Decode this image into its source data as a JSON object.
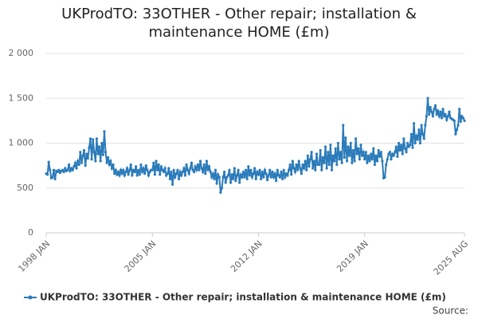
{
  "chart_data": {
    "type": "line",
    "title": "UKProdTO: 33OTHER - Other repair; installation & maintenance HOME (£m)",
    "x": [
      "1998 JAN",
      "1998 FEB",
      "1998 MAR",
      "1998 APR",
      "1998 MAY",
      "1998 JUN",
      "1998 JUL",
      "1998 AUG",
      "1998 SEP",
      "1998 OCT",
      "1998 NOV",
      "1998 DEC",
      "1999 JAN",
      "1999 FEB",
      "1999 MAR",
      "1999 APR",
      "1999 MAY",
      "1999 JUN",
      "1999 JUL",
      "1999 AUG",
      "1999 SEP",
      "1999 OCT",
      "1999 NOV",
      "1999 DEC",
      "2000 JAN",
      "2000 FEB",
      "2000 MAR",
      "2000 APR",
      "2000 MAY",
      "2000 JUN",
      "2000 JUL",
      "2000 AUG",
      "2000 SEP",
      "2000 OCT",
      "2000 NOV",
      "2000 DEC",
      "2001 JAN",
      "2001 FEB",
      "2001 MAR",
      "2001 APR",
      "2001 MAY",
      "2001 JUN",
      "2001 JUL",
      "2001 AUG",
      "2001 SEP",
      "2001 OCT",
      "2001 NOV",
      "2001 DEC",
      "2002 JAN",
      "2002 FEB",
      "2002 MAR",
      "2002 APR",
      "2002 MAY",
      "2002 JUN",
      "2002 JUL",
      "2002 AUG",
      "2002 SEP",
      "2002 OCT",
      "2002 NOV",
      "2002 DEC",
      "2003 JAN",
      "2003 FEB",
      "2003 MAR",
      "2003 APR",
      "2003 MAY",
      "2003 JUN",
      "2003 JUL",
      "2003 AUG",
      "2003 SEP",
      "2003 OCT",
      "2003 NOV",
      "2003 DEC",
      "2004 JAN",
      "2004 FEB",
      "2004 MAR",
      "2004 APR",
      "2004 MAY",
      "2004 JUN",
      "2004 JUL",
      "2004 AUG",
      "2004 SEP",
      "2004 OCT",
      "2004 NOV",
      "2004 DEC",
      "2005 JAN",
      "2005 FEB",
      "2005 MAR",
      "2005 APR",
      "2005 MAY",
      "2005 JUN",
      "2005 JUL",
      "2005 AUG",
      "2005 SEP",
      "2005 OCT",
      "2005 NOV",
      "2005 DEC",
      "2006 JAN",
      "2006 FEB",
      "2006 MAR",
      "2006 APR",
      "2006 MAY",
      "2006 JUN",
      "2006 JUL",
      "2006 AUG",
      "2006 SEP",
      "2006 OCT",
      "2006 NOV",
      "2006 DEC",
      "2007 JAN",
      "2007 FEB",
      "2007 MAR",
      "2007 APR",
      "2007 MAY",
      "2007 JUN",
      "2007 JUL",
      "2007 AUG",
      "2007 SEP",
      "2007 OCT",
      "2007 NOV",
      "2007 DEC",
      "2008 JAN",
      "2008 FEB",
      "2008 MAR",
      "2008 APR",
      "2008 MAY",
      "2008 JUN",
      "2008 JUL",
      "2008 AUG",
      "2008 SEP",
      "2008 OCT",
      "2008 NOV",
      "2008 DEC",
      "2009 JAN",
      "2009 FEB",
      "2009 MAR",
      "2009 APR",
      "2009 MAY",
      "2009 JUN",
      "2009 JUL",
      "2009 AUG",
      "2009 SEP",
      "2009 OCT",
      "2009 NOV",
      "2009 DEC",
      "2010 JAN",
      "2010 FEB",
      "2010 MAR",
      "2010 APR",
      "2010 MAY",
      "2010 JUN",
      "2010 JUL",
      "2010 AUG",
      "2010 SEP",
      "2010 OCT",
      "2010 NOV",
      "2010 DEC",
      "2011 JAN",
      "2011 FEB",
      "2011 MAR",
      "2011 APR",
      "2011 MAY",
      "2011 JUN",
      "2011 JUL",
      "2011 AUG",
      "2011 SEP",
      "2011 OCT",
      "2011 NOV",
      "2011 DEC",
      "2012 JAN",
      "2012 FEB",
      "2012 MAR",
      "2012 APR",
      "2012 MAY",
      "2012 JUN",
      "2012 JUL",
      "2012 AUG",
      "2012 SEP",
      "2012 OCT",
      "2012 NOV",
      "2012 DEC",
      "2013 JAN",
      "2013 FEB",
      "2013 MAR",
      "2013 APR",
      "2013 MAY",
      "2013 JUN",
      "2013 JUL",
      "2013 AUG",
      "2013 SEP",
      "2013 OCT",
      "2013 NOV",
      "2013 DEC",
      "2014 JAN",
      "2014 FEB",
      "2014 MAR",
      "2014 APR",
      "2014 MAY",
      "2014 JUN",
      "2014 JUL",
      "2014 AUG",
      "2014 SEP",
      "2014 OCT",
      "2014 NOV",
      "2014 DEC",
      "2015 JAN",
      "2015 FEB",
      "2015 MAR",
      "2015 APR",
      "2015 MAY",
      "2015 JUN",
      "2015 JUL",
      "2015 AUG",
      "2015 SEP",
      "2015 OCT",
      "2015 NOV",
      "2015 DEC",
      "2016 JAN",
      "2016 FEB",
      "2016 MAR",
      "2016 APR",
      "2016 MAY",
      "2016 JUN",
      "2016 JUL",
      "2016 AUG",
      "2016 SEP",
      "2016 OCT",
      "2016 NOV",
      "2016 DEC",
      "2017 JAN",
      "2017 FEB",
      "2017 MAR",
      "2017 APR",
      "2017 MAY",
      "2017 JUN",
      "2017 JUL",
      "2017 AUG",
      "2017 SEP",
      "2017 OCT",
      "2017 NOV",
      "2017 DEC",
      "2018 JAN",
      "2018 FEB",
      "2018 MAR",
      "2018 APR",
      "2018 MAY",
      "2018 JUN",
      "2018 JUL",
      "2018 AUG",
      "2018 SEP",
      "2018 OCT",
      "2018 NOV",
      "2018 DEC",
      "2019 JAN",
      "2019 FEB",
      "2019 MAR",
      "2019 APR",
      "2019 MAY",
      "2019 JUN",
      "2019 JUL",
      "2019 AUG",
      "2019 SEP",
      "2019 OCT",
      "2019 NOV",
      "2019 DEC",
      "2020 JAN",
      "2020 FEB",
      "2020 MAR",
      "2020 APR",
      "2020 MAY",
      "2020 JUN",
      "2020 JUL",
      "2020 AUG",
      "2020 SEP",
      "2020 OCT",
      "2020 NOV",
      "2020 DEC",
      "2021 JAN",
      "2021 FEB",
      "2021 MAR",
      "2021 APR",
      "2021 MAY",
      "2021 JUN",
      "2021 JUL",
      "2021 AUG",
      "2021 SEP",
      "2021 OCT",
      "2021 NOV",
      "2021 DEC",
      "2022 JAN",
      "2022 FEB",
      "2022 MAR",
      "2022 APR",
      "2022 MAY",
      "2022 JUN",
      "2022 JUL",
      "2022 AUG",
      "2022 SEP",
      "2022 OCT",
      "2022 NOV",
      "2022 DEC",
      "2023 JAN",
      "2023 FEB",
      "2023 MAR",
      "2023 APR",
      "2023 MAY",
      "2023 JUN",
      "2023 JUL",
      "2023 AUG",
      "2023 SEP",
      "2023 OCT",
      "2023 NOV",
      "2023 DEC",
      "2024 JAN",
      "2024 FEB",
      "2024 MAR",
      "2024 APR",
      "2024 MAY",
      "2024 JUN",
      "2024 JUL",
      "2024 AUG",
      "2024 SEP",
      "2024 OCT",
      "2024 NOV",
      "2024 DEC",
      "2025 JAN",
      "2025 FEB",
      "2025 MAR",
      "2025 APR",
      "2025 MAY",
      "2025 JUN",
      "2025 JUL",
      "2025 AUG"
    ],
    "series": [
      {
        "name": "UKProdTO: 33OTHER - Other repair; installation & maintenance HOME (£m)",
        "color": "#2b7bba",
        "values": [
          660,
          650,
          790,
          700,
          610,
          620,
          700,
          600,
          690,
          680,
          700,
          670,
          690,
          700,
          680,
          720,
          690,
          700,
          760,
          690,
          720,
          700,
          740,
          780,
          720,
          800,
          760,
          900,
          780,
          860,
          920,
          750,
          880,
          830,
          950,
          1050,
          820,
          1040,
          900,
          800,
          1050,
          880,
          960,
          800,
          1000,
          870,
          1130,
          900,
          780,
          840,
          760,
          800,
          720,
          760,
          660,
          700,
          650,
          680,
          640,
          700,
          660,
          700,
          640,
          680,
          720,
          650,
          700,
          760,
          640,
          700,
          680,
          740,
          640,
          700,
          650,
          760,
          680,
          720,
          660,
          750,
          700,
          640,
          680,
          700,
          700,
          780,
          650,
          800,
          700,
          760,
          650,
          740,
          700,
          680,
          720,
          640,
          660,
          720,
          600,
          680,
          540,
          700,
          620,
          660,
          700,
          600,
          680,
          640,
          680,
          720,
          640,
          760,
          700,
          660,
          720,
          780,
          700,
          680,
          740,
          700,
          760,
          700,
          800,
          720,
          680,
          760,
          660,
          800,
          700,
          740,
          680,
          620,
          660,
          600,
          700,
          550,
          650,
          620,
          450,
          500,
          620,
          680,
          560,
          620,
          640,
          700,
          560,
          650,
          600,
          720,
          580,
          640,
          700,
          560,
          650,
          620,
          680,
          620,
          700,
          600,
          740,
          640,
          700,
          620,
          660,
          720,
          600,
          680,
          650,
          700,
          600,
          680,
          620,
          700,
          660,
          590,
          640,
          700,
          620,
          680,
          620,
          660,
          580,
          700,
          640,
          620,
          680,
          600,
          700,
          620,
          660,
          640,
          700,
          760,
          650,
          800,
          720,
          680,
          760,
          700,
          800,
          720,
          660,
          760,
          720,
          800,
          700,
          860,
          740,
          820,
          900,
          720,
          800,
          700,
          880,
          760,
          760,
          920,
          700,
          840,
          780,
          960,
          720,
          900,
          760,
          980,
          700,
          860,
          800,
          940,
          760,
          1000,
          820,
          900,
          780,
          1200,
          840,
          1060,
          800,
          960,
          860,
          1000,
          780,
          920,
          800,
          1050,
          880,
          940,
          820,
          980,
          860,
          900,
          820,
          900,
          780,
          860,
          800,
          880,
          820,
          940,
          760,
          860,
          800,
          920,
          850,
          900,
          800,
          610,
          620,
          760,
          820,
          880,
          900,
          820,
          880,
          860,
          900,
          960,
          850,
          1000,
          920,
          980,
          880,
          1050,
          940,
          900,
          1000,
          960,
          980,
          1100,
          950,
          1220,
          1000,
          1080,
          1040,
          1150,
          1000,
          1200,
          1100,
          1050,
          1200,
          1300,
          1500,
          1320,
          1400,
          1350,
          1300,
          1380,
          1420,
          1320,
          1360,
          1300,
          1350,
          1280,
          1380,
          1300,
          1320,
          1260,
          1300,
          1350,
          1280,
          1270,
          1260,
          1250,
          1100,
          1150,
          1200,
          1380,
          1240,
          1300,
          1280,
          1250
        ]
      }
    ],
    "xticks": [
      "1998 JAN",
      "2005 JAN",
      "2012 JAN",
      "2019 JAN",
      "2025 AUG"
    ],
    "ylim": [
      0,
      2000
    ],
    "yticks": [
      {
        "value": 0,
        "label": "0"
      },
      {
        "value": 500,
        "label": "500"
      },
      {
        "value": 1000,
        "label": "1 000"
      },
      {
        "value": 1500,
        "label": "1 500"
      },
      {
        "value": 2000,
        "label": "2 000"
      }
    ],
    "grid": true,
    "legend": "bottom",
    "source": "Source:"
  }
}
